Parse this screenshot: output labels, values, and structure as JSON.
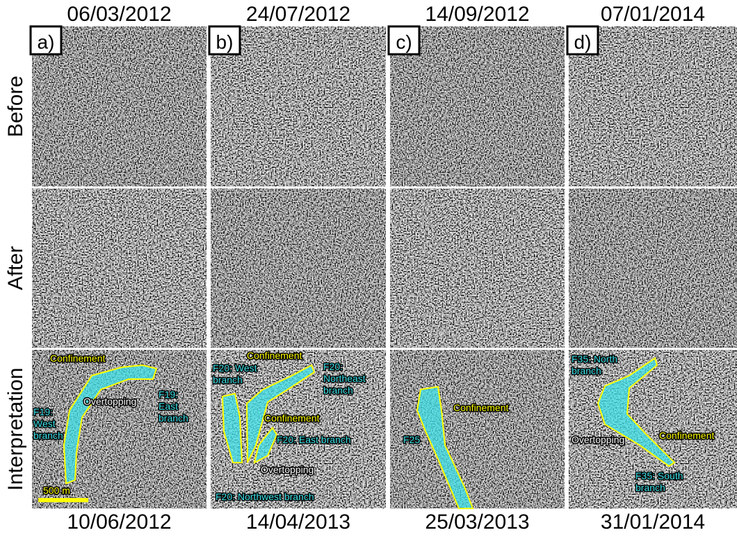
{
  "rows": [
    "Before",
    "After",
    "Interpretation"
  ],
  "columns": [
    {
      "label": "a)",
      "before_date": "06/03/2012",
      "after_date": "10/06/2012",
      "annotations": [
        {
          "lines": [
            "Confinement"
          ],
          "color": "#ffff00"
        },
        {
          "lines": [
            "Overtopping"
          ],
          "color": "#ffffff"
        },
        {
          "lines": [
            "F19:",
            "East",
            "branch"
          ],
          "color": "#3fe3ea"
        },
        {
          "lines": [
            "F19:",
            "West",
            "branch"
          ],
          "color": "#3fe3ea"
        }
      ]
    },
    {
      "label": "b)",
      "before_date": "24/07/2012",
      "after_date": "14/04/2013",
      "annotations": [
        {
          "lines": [
            "Confinement"
          ],
          "color": "#ffff00"
        },
        {
          "lines": [
            "F20: West",
            "branch"
          ],
          "color": "#3fe3ea"
        },
        {
          "lines": [
            "F20:",
            "Northeast",
            "branch"
          ],
          "color": "#3fe3ea"
        },
        {
          "lines": [
            "Confinement"
          ],
          "color": "#ffff00"
        },
        {
          "lines": [
            "F20: East branch"
          ],
          "color": "#3fe3ea"
        },
        {
          "lines": [
            "Overtopping"
          ],
          "color": "#ffffff"
        },
        {
          "lines": [
            "F20: Northwest branch"
          ],
          "color": "#3fe3ea"
        }
      ]
    },
    {
      "label": "c)",
      "before_date": "14/09/2012",
      "after_date": "25/03/2013",
      "annotations": [
        {
          "lines": [
            "Confinement"
          ],
          "color": "#ffff00"
        },
        {
          "lines": [
            "F25"
          ],
          "color": "#3fe3ea"
        }
      ]
    },
    {
      "label": "d)",
      "before_date": "07/01/2014",
      "after_date": "31/01/2014",
      "annotations": [
        {
          "lines": [
            "F35: North",
            "branch"
          ],
          "color": "#3fe3ea"
        },
        {
          "lines": [
            "Overtopping"
          ],
          "color": "#ffffff"
        },
        {
          "lines": [
            "Confinement"
          ],
          "color": "#ffff00"
        },
        {
          "lines": [
            "F35: South",
            "branch"
          ],
          "color": "#3fe3ea"
        }
      ]
    }
  ],
  "scale_bar": "500 m"
}
